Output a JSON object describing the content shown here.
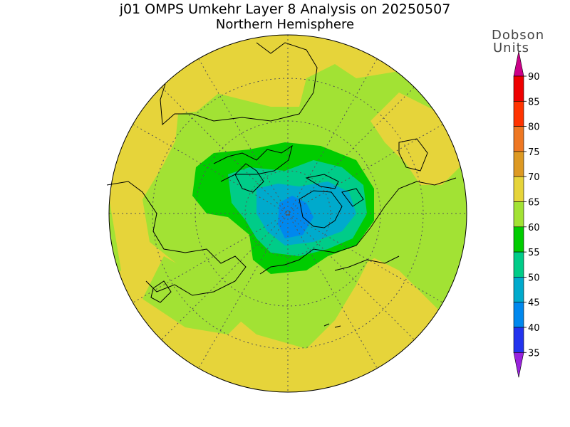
{
  "title": "j01 OMPS Umkehr Layer 8 Analysis on 20250507",
  "subtitle": "Northern Hemisphere",
  "legend": {
    "title_line1": "Dobson",
    "title_line2": "Units",
    "levels": [
      {
        "value": "90",
        "color": "#ee0000"
      },
      {
        "value": "85",
        "color": "#ff3300"
      },
      {
        "value": "80",
        "color": "#ee7722"
      },
      {
        "value": "75",
        "color": "#dd9922"
      },
      {
        "value": "70",
        "color": "#e6d43a"
      },
      {
        "value": "65",
        "color": "#a2e234"
      },
      {
        "value": "60",
        "color": "#00cc00"
      },
      {
        "value": "55",
        "color": "#00cc88"
      },
      {
        "value": "50",
        "color": "#00aacc"
      },
      {
        "value": "45",
        "color": "#0088ee"
      },
      {
        "value": "40",
        "color": "#2233ee"
      },
      {
        "value": "35",
        "color": "#6600dd"
      }
    ],
    "top_arrow_color": "#cc0088",
    "bottom_arrow_color": "#9922dd"
  },
  "map": {
    "projection": "north-polar-stereographic",
    "hemisphere": "Northern Hemisphere",
    "background_color": "#a2e234",
    "fields": {
      "yellow": "#e6d43a",
      "light_green": "#a2e234",
      "green": "#00cc00",
      "teal": "#00cc88",
      "cyan": "#00aacc",
      "blue": "#0088ee"
    }
  }
}
